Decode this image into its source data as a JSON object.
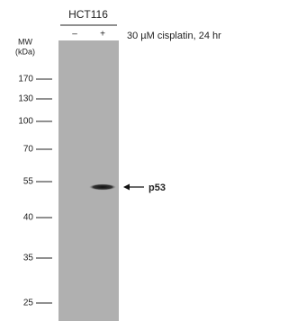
{
  "header": {
    "cell_line": "HCT116",
    "lanes": [
      "–",
      "+"
    ],
    "treatment": "30 µM cisplatin, 24 hr"
  },
  "mw": {
    "label_line1": "MW",
    "label_line2": "(kDa)",
    "markers": [
      "170",
      "130",
      "100",
      "70",
      "55",
      "40",
      "35",
      "25"
    ]
  },
  "band": {
    "label": "p53"
  }
}
